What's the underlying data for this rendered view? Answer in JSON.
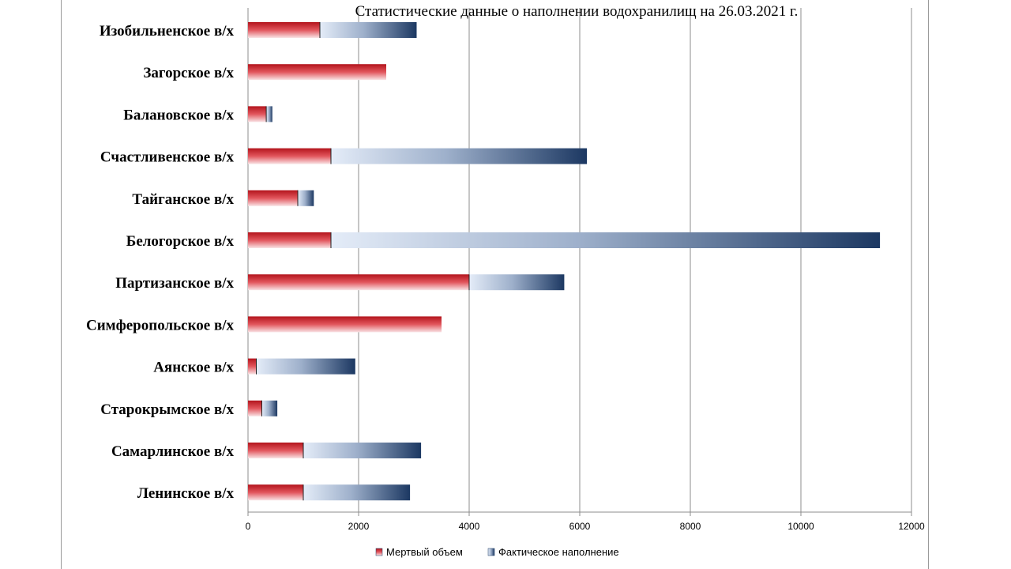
{
  "chart_data": {
    "type": "bar",
    "orientation": "horizontal",
    "stacked": true,
    "title": "Статистические данные о наполнении водохранилищ на 26.03.2021 г.",
    "categories": [
      "Изобильненское в/х",
      "Загорское в/х",
      "Балановское в/х",
      "Счастливенское в/х",
      "Тайганское в/х",
      "Белогорское в/х",
      "Партизанское в/х",
      "Симферопольское в/х",
      "Аянское в/х",
      "Старокрымское в/х",
      "Самарлинское в/х",
      "Ленинское в/х"
    ],
    "series": [
      {
        "name": "Мертвый объем",
        "color": "#c0202a",
        "values": [
          1300,
          2500,
          330,
          1500,
          900,
          1500,
          4000,
          3500,
          150,
          250,
          1000,
          1000
        ]
      },
      {
        "name": "Фактическое наполнение",
        "color": "#1f3c66",
        "values": [
          1750,
          0,
          110,
          4630,
          290,
          9930,
          1720,
          0,
          1790,
          280,
          2130,
          1930
        ]
      }
    ],
    "xlim": [
      0,
      12000
    ],
    "xticks": [
      "0",
      "2000",
      "4000",
      "6000",
      "8000",
      "10000",
      "12000"
    ],
    "grid": true,
    "legend_position": "bottom"
  }
}
